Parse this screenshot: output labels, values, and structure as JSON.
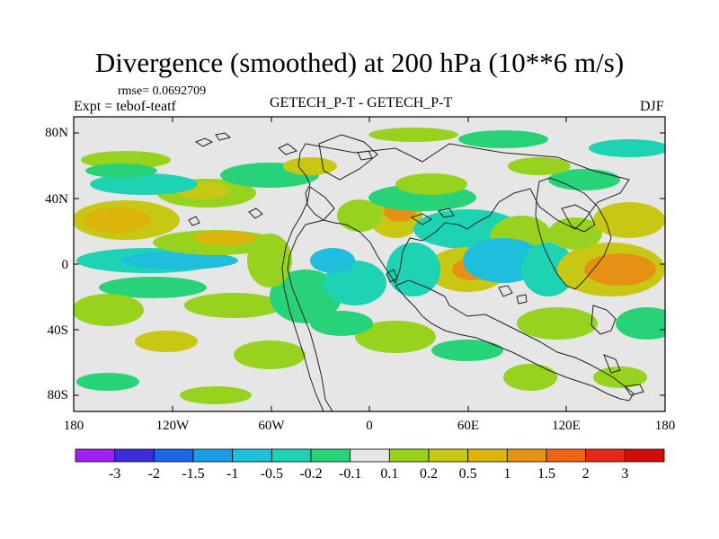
{
  "title": "Divergence (smoothed) at 200 hPa (10**6 m/s)",
  "rmse_label": "rmse= 0.0692709",
  "expt_label": "Expt = tebof-teatf",
  "center_label": "GETECH_P-T - GETECH_P-T",
  "season_label": "DJF",
  "lat_labels": [
    "80N",
    "40N",
    "0",
    "40S",
    "80S"
  ],
  "lon_labels": [
    "180",
    "120W",
    "60W",
    "0",
    "60E",
    "120E",
    "180"
  ],
  "colorbar": {
    "levels": [
      "-3",
      "-2",
      "-1.5",
      "-1",
      "-0.5",
      "-0.2",
      "-0.1",
      "0.1",
      "0.2",
      "0.5",
      "1",
      "1.5",
      "2",
      "3"
    ],
    "colors": [
      "#a020f0",
      "#3c2cdc",
      "#1e64e6",
      "#1e9be6",
      "#1ebedc",
      "#1ed2b4",
      "#28d278",
      "#e6e6e6",
      "#96d21e",
      "#c8c814",
      "#dcb40a",
      "#e69114",
      "#ee6414",
      "#e62814",
      "#d20a0a"
    ]
  },
  "field_colors": {
    "neutral": "#e6e6e6",
    "neg1": "#28d278",
    "neg2": "#1ed2b4",
    "neg3": "#1ebedc",
    "neg4": "#1e9be6",
    "pos1": "#96d21e",
    "pos2": "#c8c814",
    "pos3": "#dcb40a",
    "pos4": "#e69114",
    "pos5": "#ee6414"
  }
}
